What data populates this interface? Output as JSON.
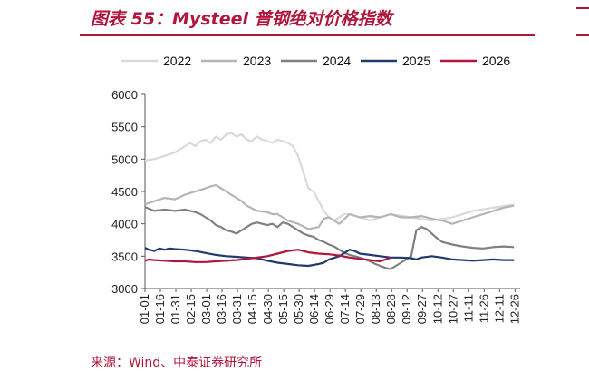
{
  "header": {
    "title": "图表 55：Mysteel 普钢绝对价格指数"
  },
  "footer": {
    "source": "来源：Wind、中泰证券研究所"
  },
  "chart_data": {
    "type": "line",
    "title": "图表 55：Mysteel 普钢绝对价格指数",
    "xlabel": "",
    "ylabel": "",
    "ylim": [
      3000,
      6000
    ],
    "yticks": [
      3000,
      3500,
      4000,
      4500,
      5000,
      5500,
      6000
    ],
    "x_ticks": [
      "01-01",
      "01-16",
      "01-31",
      "02-15",
      "03-01",
      "03-16",
      "03-31",
      "04-15",
      "04-30",
      "05-15",
      "05-30",
      "06-14",
      "06-29",
      "07-14",
      "07-29",
      "08-13",
      "08-28",
      "09-12",
      "09-27",
      "10-12",
      "10-27",
      "11-11",
      "11-26",
      "12-11",
      "12-26"
    ],
    "legend_position": "top",
    "grid": false,
    "x_unit": "day_of_year",
    "series": [
      {
        "name": "2022",
        "color": "#d9d9d9",
        "x": [
          1,
          10,
          20,
          30,
          40,
          45,
          50,
          55,
          60,
          65,
          70,
          75,
          80,
          85,
          90,
          95,
          100,
          105,
          110,
          115,
          120,
          125,
          130,
          135,
          140,
          145,
          150,
          155,
          160,
          165,
          170,
          175,
          180,
          185,
          190,
          195,
          200,
          210,
          220,
          240,
          260,
          280,
          300,
          320,
          340,
          360
        ],
        "values": [
          4980,
          5000,
          5050,
          5100,
          5200,
          5250,
          5200,
          5280,
          5300,
          5250,
          5350,
          5300,
          5380,
          5400,
          5350,
          5380,
          5300,
          5280,
          5350,
          5300,
          5280,
          5250,
          5300,
          5280,
          5250,
          5200,
          5050,
          4800,
          4550,
          4500,
          4350,
          4200,
          4100,
          4050,
          4100,
          4150,
          4150,
          4100,
          4050,
          4150,
          4100,
          4050,
          4100,
          4200,
          4250,
          4300
        ]
      },
      {
        "name": "2023",
        "color": "#b5b5b5",
        "x": [
          1,
          10,
          20,
          30,
          40,
          50,
          60,
          65,
          70,
          75,
          80,
          85,
          90,
          95,
          100,
          110,
          120,
          125,
          130,
          135,
          140,
          150,
          160,
          170,
          175,
          180,
          190,
          200,
          210,
          220,
          230,
          240,
          250,
          260,
          270,
          280,
          290,
          300,
          310,
          320,
          330,
          340,
          350,
          360
        ],
        "values": [
          4300,
          4350,
          4400,
          4380,
          4450,
          4500,
          4550,
          4580,
          4600,
          4550,
          4500,
          4450,
          4400,
          4350,
          4280,
          4200,
          4180,
          4150,
          4150,
          4100,
          4050,
          4000,
          3920,
          3950,
          4080,
          4100,
          4000,
          4150,
          4100,
          4120,
          4100,
          4150,
          4100,
          4100,
          4120,
          4080,
          4050,
          4000,
          4050,
          4100,
          4150,
          4200,
          4250,
          4280
        ]
      },
      {
        "name": "2024",
        "color": "#808080",
        "x": [
          1,
          10,
          20,
          30,
          40,
          50,
          55,
          60,
          65,
          70,
          75,
          80,
          85,
          90,
          95,
          100,
          105,
          110,
          115,
          120,
          125,
          130,
          135,
          140,
          145,
          150,
          155,
          160,
          165,
          170,
          175,
          180,
          185,
          190,
          195,
          200,
          205,
          210,
          215,
          220,
          225,
          230,
          235,
          240,
          245,
          250,
          255,
          260,
          265,
          270,
          275,
          280,
          285,
          290,
          295,
          300,
          310,
          320,
          330,
          340,
          350,
          360
        ],
        "values": [
          4260,
          4200,
          4220,
          4200,
          4220,
          4180,
          4150,
          4100,
          4050,
          3980,
          3950,
          3900,
          3880,
          3850,
          3900,
          3950,
          4000,
          4020,
          4000,
          3980,
          4000,
          3950,
          4020,
          4000,
          3950,
          3900,
          3850,
          3820,
          3800,
          3750,
          3720,
          3680,
          3650,
          3600,
          3550,
          3520,
          3500,
          3480,
          3450,
          3420,
          3380,
          3350,
          3320,
          3300,
          3350,
          3400,
          3450,
          3500,
          3900,
          3950,
          3920,
          3850,
          3780,
          3720,
          3700,
          3680,
          3650,
          3630,
          3620,
          3640,
          3650,
          3640
        ]
      },
      {
        "name": "2025",
        "color": "#1f3a6e",
        "x": [
          1,
          5,
          10,
          15,
          20,
          25,
          30,
          40,
          50,
          60,
          70,
          80,
          90,
          100,
          110,
          120,
          130,
          140,
          150,
          160,
          170,
          175,
          180,
          190,
          200,
          205,
          210,
          220,
          230,
          240,
          250,
          260,
          265,
          270,
          280,
          290,
          300,
          310,
          320,
          330,
          340,
          350,
          360
        ],
        "values": [
          3630,
          3600,
          3580,
          3620,
          3600,
          3620,
          3610,
          3600,
          3580,
          3550,
          3520,
          3500,
          3490,
          3480,
          3470,
          3430,
          3400,
          3380,
          3360,
          3350,
          3380,
          3400,
          3450,
          3500,
          3600,
          3580,
          3540,
          3520,
          3500,
          3480,
          3480,
          3470,
          3450,
          3480,
          3500,
          3480,
          3450,
          3440,
          3430,
          3440,
          3450,
          3440,
          3440
        ]
      },
      {
        "name": "2026",
        "color": "#b0163c",
        "x": [
          1,
          5,
          10,
          20,
          30,
          40,
          50,
          60,
          70,
          80,
          90,
          100,
          110,
          120,
          130,
          140,
          150,
          160,
          170,
          180,
          190,
          200,
          210,
          220,
          230,
          240
        ],
        "values": [
          3430,
          3450,
          3440,
          3430,
          3420,
          3420,
          3410,
          3410,
          3420,
          3430,
          3440,
          3460,
          3480,
          3500,
          3540,
          3580,
          3600,
          3560,
          3540,
          3530,
          3510,
          3480,
          3460,
          3440,
          3420,
          3480
        ]
      }
    ]
  }
}
